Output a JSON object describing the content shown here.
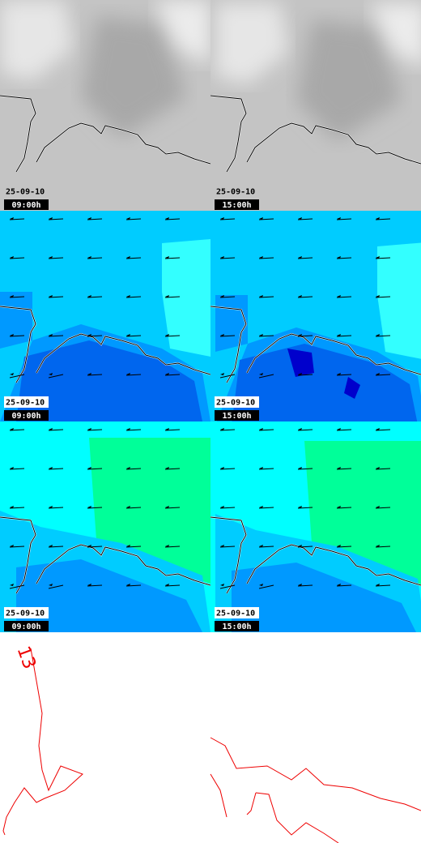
{
  "panels": [
    {
      "date": "25-09-10",
      "time": "09:00h"
    },
    {
      "date": "25-09-10",
      "time": "15:00h"
    },
    {
      "date": "25-09-10",
      "time": "09:00h"
    },
    {
      "date": "25-09-10",
      "time": "15:00h"
    },
    {
      "date": "25-09-10",
      "time": "09:00h"
    },
    {
      "date": "25-09-10",
      "time": "15:00h"
    }
  ],
  "footer_label": "13"
}
